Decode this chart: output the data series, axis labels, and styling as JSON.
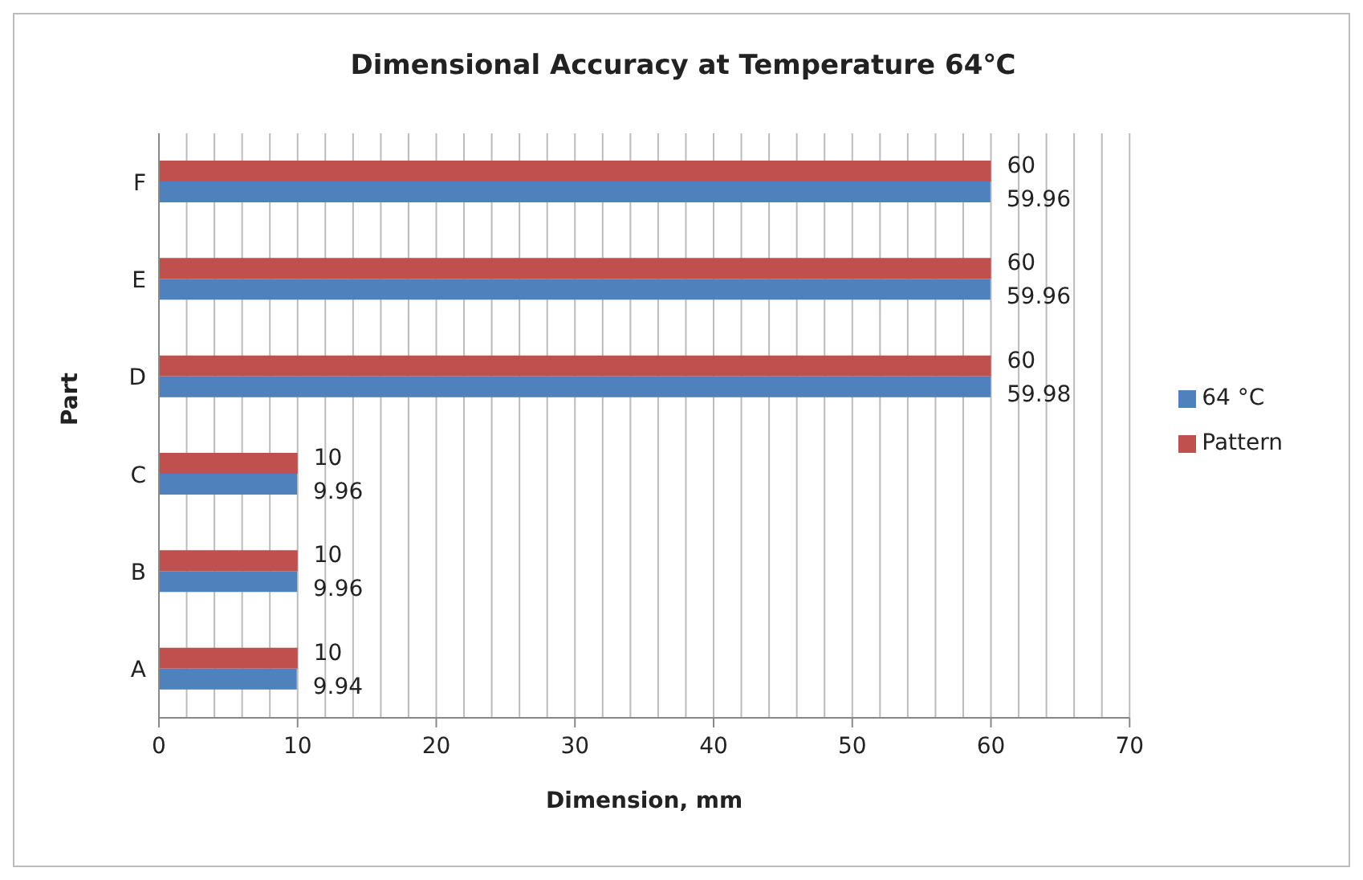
{
  "chart_data": {
    "type": "bar",
    "orientation": "horizontal",
    "title": "Dimensional Accuracy at Temperature 64℃",
    "xlabel": "Dimension, mm",
    "ylabel": "Part",
    "categories": [
      "F",
      "E",
      "D",
      "C",
      "B",
      "A"
    ],
    "series": [
      {
        "name": "Pattern",
        "color": "#c0504d",
        "values": [
          60,
          60,
          60,
          10,
          10,
          10
        ]
      },
      {
        "name": "64 °C",
        "color": "#4f81bd",
        "values": [
          59.96,
          59.96,
          59.98,
          9.96,
          9.96,
          9.94
        ]
      }
    ],
    "xlim": [
      0,
      70
    ],
    "xticks": [
      0,
      {
        "value": 2,
        "label": null
      },
      {
        "value": 4,
        "label": null
      },
      {
        "value": 6,
        "label": null
      },
      {
        "value": 8,
        "label": null
      },
      10,
      {
        "value": 12,
        "label": null
      },
      {
        "value": 14,
        "label": null
      },
      {
        "value": 16,
        "label": null
      },
      {
        "value": 18,
        "label": null
      },
      20,
      {
        "value": 22,
        "label": null
      },
      {
        "value": 24,
        "label": null
      },
      {
        "value": 26,
        "label": null
      },
      {
        "value": 28,
        "label": null
      },
      30,
      {
        "value": 32,
        "label": null
      },
      {
        "value": 34,
        "label": null
      },
      {
        "value": 36,
        "label": null
      },
      {
        "value": 38,
        "label": null
      },
      40,
      {
        "value": 42,
        "label": null
      },
      {
        "value": 44,
        "label": null
      },
      {
        "value": 46,
        "label": null
      },
      {
        "value": 48,
        "label": null
      },
      50,
      {
        "value": 52,
        "label": null
      },
      {
        "value": 54,
        "label": null
      },
      {
        "value": 56,
        "label": null
      },
      {
        "value": 58,
        "label": null
      },
      60,
      {
        "value": 62,
        "label": null
      },
      {
        "value": 64,
        "label": null
      },
      {
        "value": 66,
        "label": null
      },
      {
        "value": 68,
        "label": null
      },
      70
    ],
    "grid": "x",
    "legend": "right",
    "data_labels": true
  }
}
